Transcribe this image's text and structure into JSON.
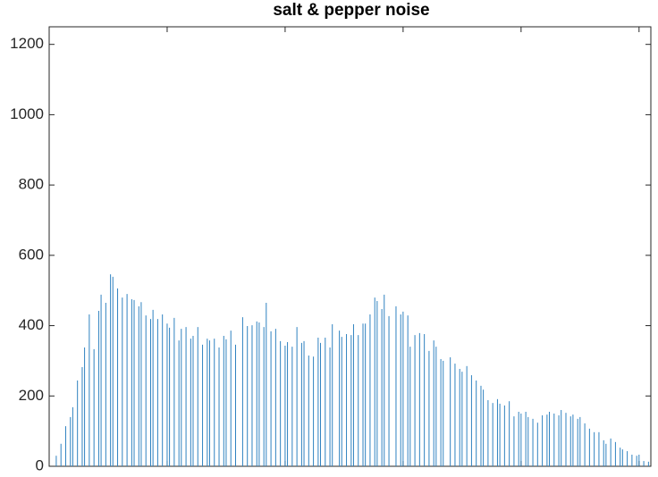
{
  "chart_data": {
    "type": "stem",
    "title": "salt & pepper noise",
    "color": "#2f82c0",
    "x": [
      3,
      5,
      7,
      9,
      10,
      12,
      14,
      15,
      17,
      19,
      21,
      22,
      24,
      26,
      27,
      29,
      31,
      33,
      35,
      36,
      38,
      39,
      41,
      43,
      44,
      46,
      48,
      50,
      51,
      53,
      55,
      56,
      58,
      60,
      61,
      63,
      65,
      67,
      68,
      70,
      72,
      74,
      75,
      77,
      79,
      82,
      84,
      86,
      88,
      89,
      91,
      92,
      94,
      96,
      98,
      100,
      101,
      103,
      105,
      107,
      108,
      110,
      112,
      114,
      115,
      117,
      119,
      120,
      123,
      124,
      126,
      128,
      129,
      131,
      133,
      134,
      136,
      138,
      139,
      141,
      142,
      144,
      147,
      149,
      150,
      152,
      153,
      155,
      157,
      159,
      161,
      163,
      164,
      166,
      167,
      170,
      172,
      174,
      175,
      177,
      179,
      181,
      183,
      184,
      186,
      188,
      190,
      191,
      193,
      195,
      197,
      199,
      200,
      202,
      203,
      205,
      207,
      209,
      211,
      212,
      214,
      216,
      217,
      219,
      221,
      222,
      224,
      225,
      227,
      229,
      231,
      233,
      235,
      236,
      238,
      240,
      242,
      243,
      245,
      247,
      249,
      250,
      252,
      254
    ],
    "values": [
      30,
      64,
      114,
      140,
      168,
      244,
      282,
      338,
      432,
      333,
      442,
      488,
      465,
      546,
      539,
      506,
      480,
      490,
      475,
      473,
      455,
      467,
      429,
      419,
      445,
      419,
      432,
      406,
      394,
      422,
      358,
      391,
      396,
      363,
      371,
      396,
      346,
      363,
      358,
      363,
      338,
      371,
      361,
      386,
      346,
      424,
      399,
      401,
      412,
      409,
      396,
      465,
      384,
      391,
      356,
      343,
      353,
      340,
      396,
      351,
      356,
      315,
      312,
      366,
      351,
      366,
      338,
      404,
      386,
      368,
      376,
      373,
      404,
      373,
      406,
      406,
      432,
      480,
      470,
      447,
      488,
      427,
      455,
      432,
      440,
      429,
      340,
      373,
      379,
      376,
      328,
      358,
      340,
      305,
      300,
      310,
      292,
      277,
      269,
      285,
      259,
      244,
      229,
      218,
      188,
      180,
      191,
      178,
      173,
      185,
      142,
      155,
      150,
      155,
      140,
      135,
      124,
      145,
      147,
      155,
      150,
      145,
      160,
      152,
      142,
      147,
      135,
      140,
      122,
      107,
      97,
      97,
      74,
      64,
      79,
      69,
      53,
      48,
      43,
      33,
      30,
      33,
      15,
      13
    ],
    "xlim": [
      0,
      255
    ],
    "xticks": [
      0,
      50,
      100,
      150,
      200,
      250
    ],
    "ylim": [
      0,
      1250
    ],
    "yticks": [
      0,
      200,
      400,
      600,
      800,
      1000,
      1200
    ]
  }
}
